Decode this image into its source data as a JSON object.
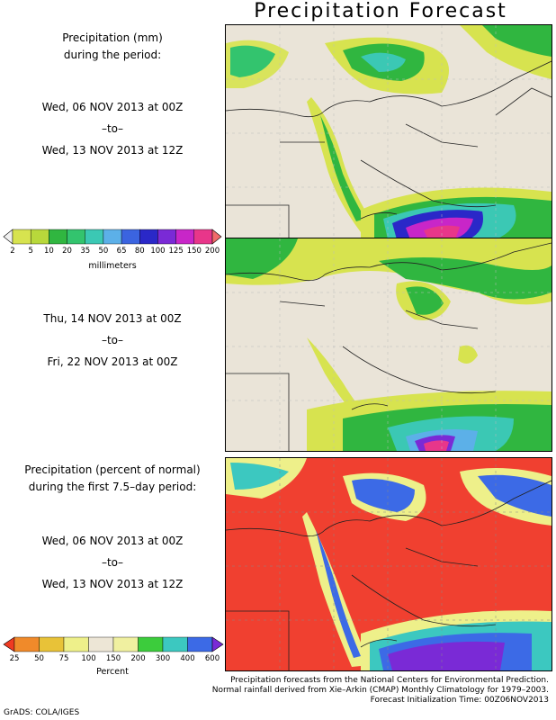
{
  "title": "Precipitation Forecast",
  "panel1": {
    "heading_line1": "Precipitation (mm)",
    "heading_line2": "during the period:",
    "start": "Wed, 06 NOV 2013 at 00Z",
    "to": "–to–",
    "end": "Wed, 13 NOV 2013 at 12Z"
  },
  "panel2": {
    "start": "Thu, 14 NOV 2013 at 00Z",
    "to": "–to–",
    "end": "Fri, 22 NOV 2013 at 00Z"
  },
  "panel3": {
    "heading_line1": "Precipitation (percent of normal)",
    "heading_line2": "during the first 7.5–day period:",
    "start": "Wed, 06 NOV 2013 at 00Z",
    "to": "–to–",
    "end": "Wed, 13 NOV 2013 at 12Z"
  },
  "precip_colorbar": {
    "unit_label": "millimeters",
    "ticks": [
      "2",
      "5",
      "10",
      "20",
      "35",
      "50",
      "65",
      "80",
      "100",
      "125",
      "150",
      "200"
    ],
    "colors": [
      "#f0f0f0",
      "#d7e34f",
      "#b8d83b",
      "#30b640",
      "#33c46e",
      "#3bc8b4",
      "#5cb0e8",
      "#3b64e0",
      "#2a28c8",
      "#7a2ad6",
      "#c826c8",
      "#e8368a",
      "#f06a6a"
    ]
  },
  "percent_colorbar": {
    "unit_label": "Percent",
    "ticks": [
      "25",
      "50",
      "75",
      "100",
      "150",
      "200",
      "300",
      "400",
      "600"
    ],
    "colors": [
      "#f03a22",
      "#f08a2a",
      "#e8c238",
      "#eef08a",
      "#ede6d6",
      "#f0f0a0",
      "#3ccc3c",
      "#3cc8c0",
      "#3c6ae6",
      "#7a2ad6"
    ]
  },
  "footer": {
    "line1": "Precipitation forecasts from the National Centers for Environmental Prediction.",
    "line2": "Normal rainfall derived from Xie–Arkin (CMAP) Monthly Climatology for 1979–2003.",
    "line3": "Forecast Initialization Time: 00Z06NOV2013",
    "credit": "GrADS: COLA/IGES"
  },
  "colors": {
    "land": "#eae4d8",
    "red_below_normal": "#f04030"
  }
}
